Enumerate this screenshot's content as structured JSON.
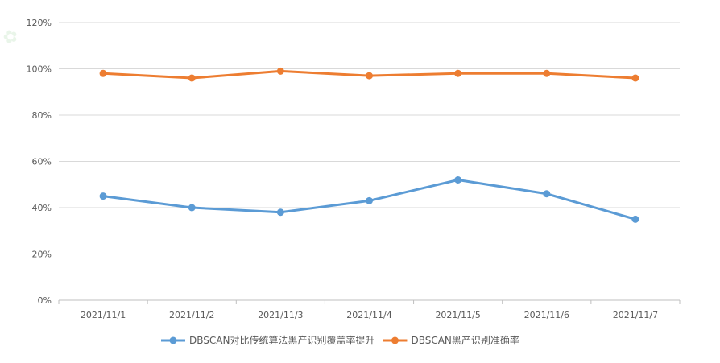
{
  "chart_data": {
    "type": "line",
    "categories": [
      "2021/11/1",
      "2021/11/2",
      "2021/11/3",
      "2021/11/4",
      "2021/11/5",
      "2021/11/6",
      "2021/11/7"
    ],
    "ylim": [
      0,
      120
    ],
    "yticks": [
      0,
      20,
      40,
      60,
      80,
      100,
      120
    ],
    "ytick_labels": [
      "0%",
      "20%",
      "40%",
      "60%",
      "80%",
      "100%",
      "120%"
    ],
    "grid": true,
    "legend_position": "bottom",
    "series": [
      {
        "name": "DBSCAN对比传统算法黑产识别覆盖率提升",
        "color": "#5B9BD5",
        "values": [
          45,
          40,
          38,
          43,
          52,
          46,
          35
        ]
      },
      {
        "name": "DBSCAN黑产识别准确率",
        "color": "#ED7D31",
        "values": [
          98,
          96,
          99,
          97,
          98,
          98,
          96
        ]
      }
    ]
  }
}
